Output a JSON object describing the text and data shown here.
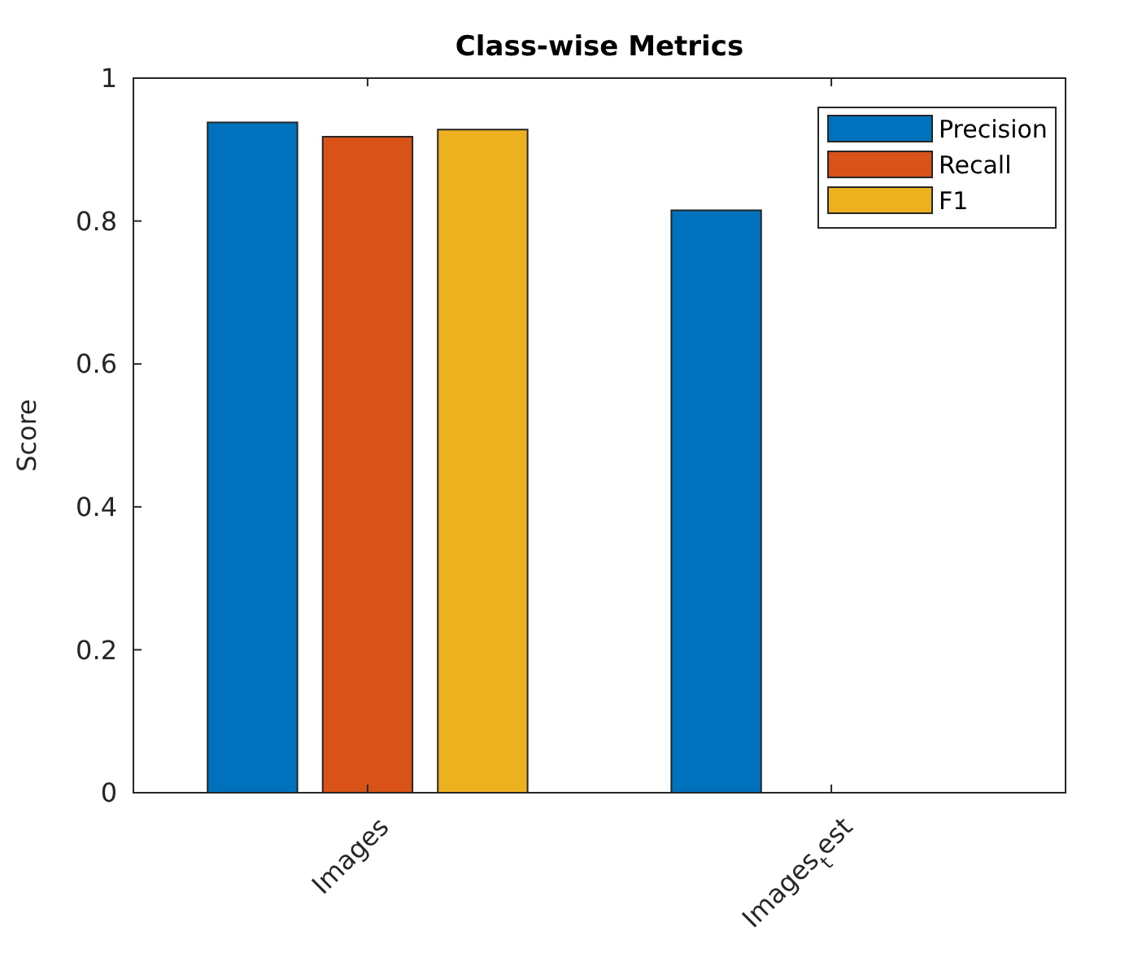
{
  "chart_data": {
    "type": "bar",
    "title": "Class-wise Metrics",
    "ylabel": "Score",
    "categories": [
      "Images",
      "Images$_{t}$est"
    ],
    "series": [
      {
        "name": "Precision",
        "color": "#0072bd",
        "values": [
          0.938,
          0.815
        ]
      },
      {
        "name": "Recall",
        "color": "#d95319",
        "values": [
          0.918,
          null
        ]
      },
      {
        "name": "F1",
        "color": "#edb120",
        "values": [
          0.928,
          null
        ]
      }
    ],
    "ylim": [
      0,
      1
    ],
    "yticks": [
      0,
      0.2,
      0.4,
      0.6,
      0.8,
      1
    ],
    "grid": false,
    "legend": "top right"
  }
}
